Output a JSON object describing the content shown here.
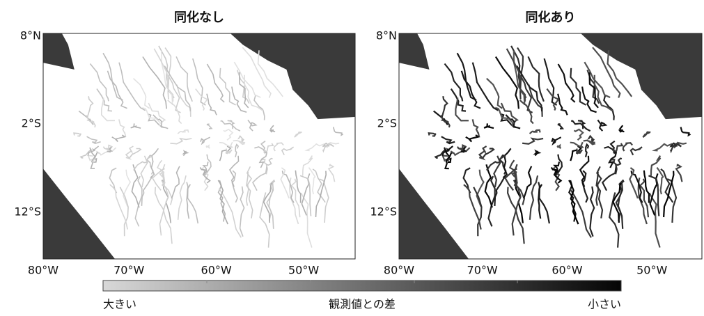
{
  "panels": [
    {
      "title": "同化なし",
      "lat_labels": [
        "8°N",
        "2°S",
        "12°S"
      ],
      "lon_labels": [
        "80°W",
        "70°W",
        "60°W",
        "50°W"
      ]
    },
    {
      "title": "同化あり",
      "lat_labels": [
        "8°N",
        "2°S",
        "12°S"
      ],
      "lon_labels": [
        "80°W",
        "70°W",
        "60°W",
        "50°W"
      ]
    }
  ],
  "colorbar": {
    "label": "観測値との差",
    "left_label": "大きい",
    "right_label": "小さい"
  }
}
